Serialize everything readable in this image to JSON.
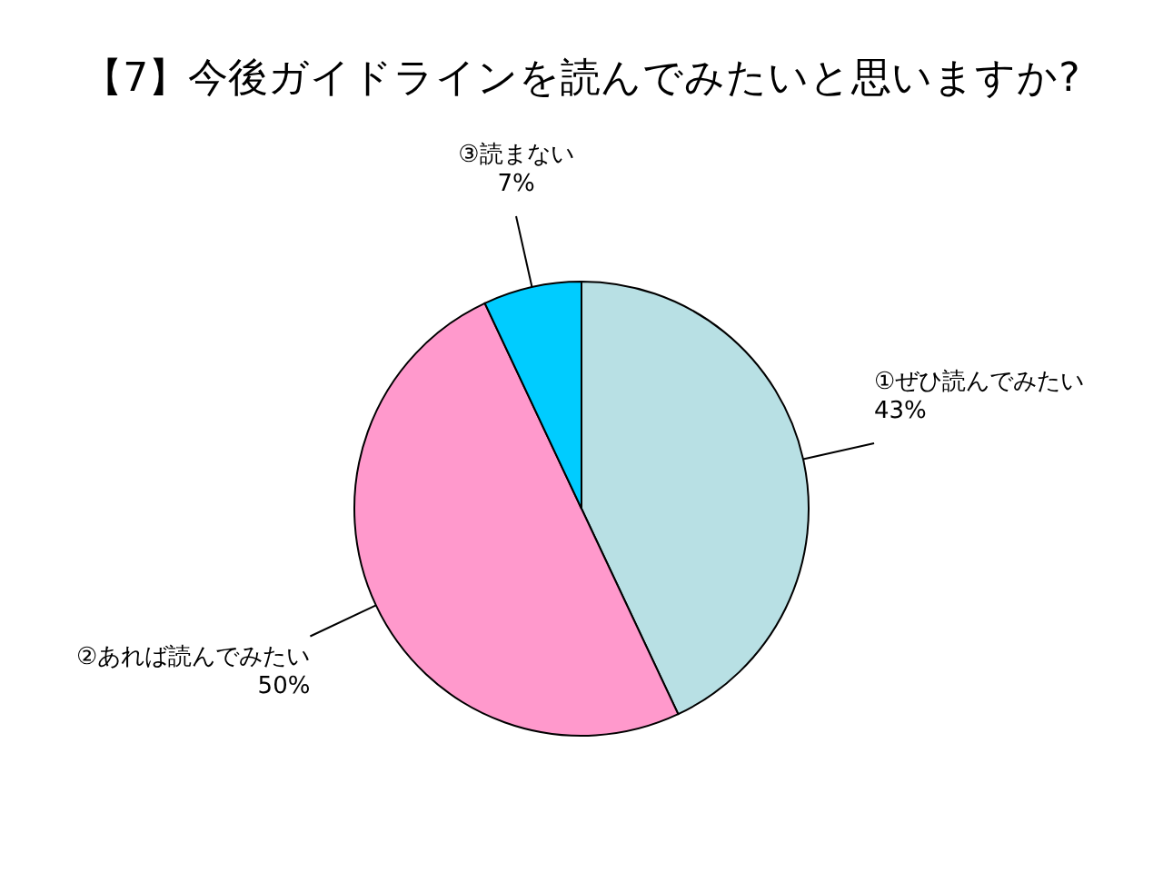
{
  "chart_data": {
    "type": "pie",
    "title": "【7】今後ガイドラインを読んでみたいと思いますか?",
    "categories": [
      "①ぜひ読んでみたい",
      "②あれば読んでみたい",
      "③読まない"
    ],
    "values": [
      43,
      50,
      7
    ],
    "colors": [
      "#b8e0e4",
      "#ff99cc",
      "#00ccff"
    ],
    "value_labels": [
      "43%",
      "50%",
      "7%"
    ]
  }
}
